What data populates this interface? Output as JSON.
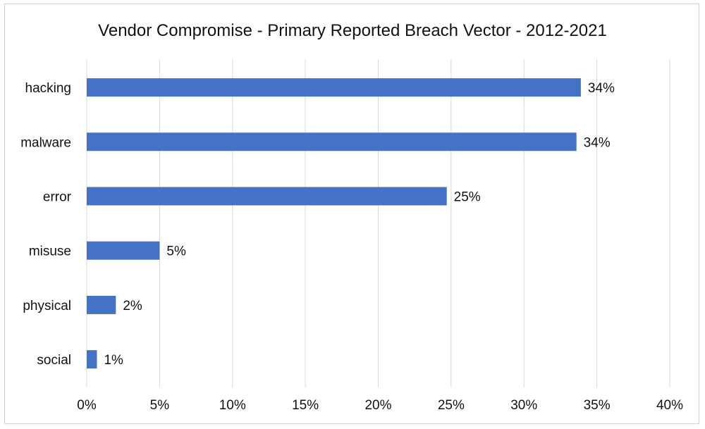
{
  "chart_data": {
    "type": "bar",
    "orientation": "horizontal",
    "title": "Vendor Compromise - Primary Reported Breach Vector - 2012-2021",
    "categories": [
      "hacking",
      "malware",
      "error",
      "misuse",
      "physical",
      "social"
    ],
    "values": [
      33.9,
      33.6,
      24.7,
      5.0,
      2.0,
      0.7
    ],
    "data_labels": [
      "34%",
      "34%",
      "25%",
      "5%",
      "2%",
      "1%"
    ],
    "xlim": [
      0,
      40
    ],
    "x_ticks": [
      0,
      5,
      10,
      15,
      20,
      25,
      30,
      35,
      40
    ],
    "x_tick_labels": [
      "0%",
      "5%",
      "10%",
      "15%",
      "20%",
      "25%",
      "30%",
      "35%",
      "40%"
    ],
    "grid": "vertical",
    "legend": "none",
    "bar_color": "#4472C4",
    "grid_color": "#d9d9d9"
  }
}
